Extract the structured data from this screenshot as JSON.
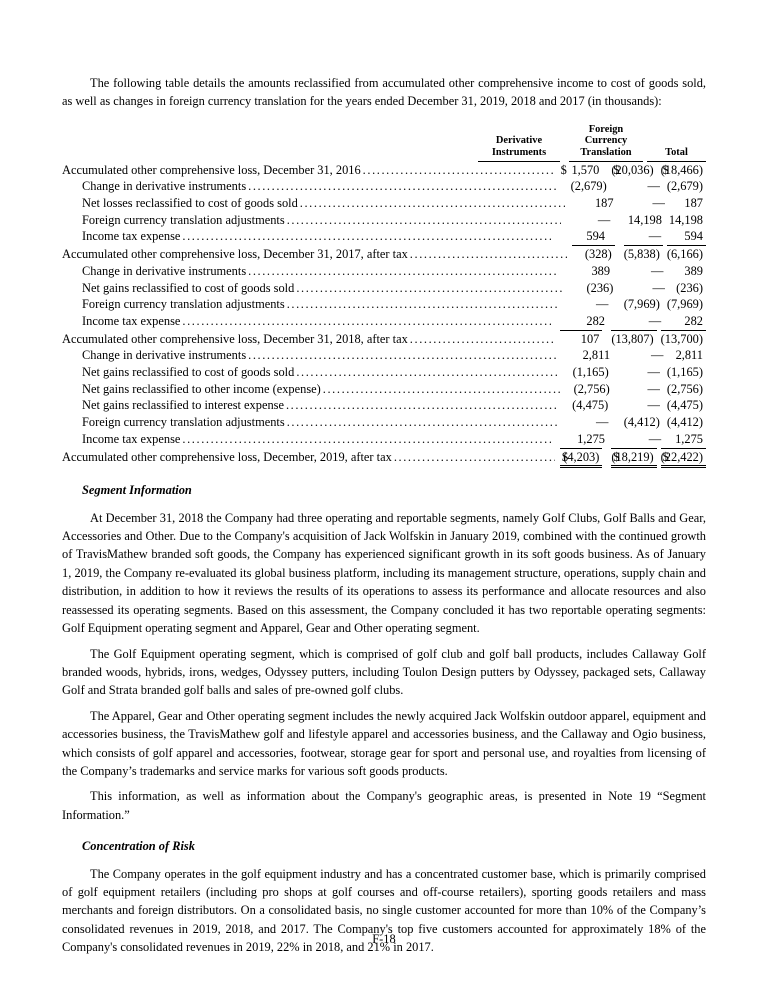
{
  "intro": "The following table details the amounts reclassified from accumulated other comprehensive income to cost of goods sold, as well as changes in foreign currency translation for the years ended December 31, 2019, 2018 and 2017 (in thousands):",
  "table": {
    "headers": [
      {
        "lines": [
          "Derivative",
          "Instruments"
        ]
      },
      {
        "lines": [
          "Foreign",
          "Currency",
          "Translation"
        ]
      },
      {
        "lines": [
          "Total"
        ]
      }
    ],
    "rows": [
      {
        "label": "Accumulated other comprehensive loss, December 31, 2016",
        "indent": false,
        "rule": "none",
        "cells": [
          {
            "s": "$",
            "v": "1,570"
          },
          {
            "s": "$",
            "v": "(20,036)"
          },
          {
            "s": "$",
            "v": "(18,466)"
          }
        ]
      },
      {
        "label": "Change in derivative instruments",
        "indent": true,
        "rule": "none",
        "cells": [
          {
            "v": "(2,679)"
          },
          {
            "v": "—"
          },
          {
            "v": "(2,679)"
          }
        ]
      },
      {
        "label": "Net losses reclassified to cost of goods sold",
        "indent": true,
        "rule": "none",
        "cells": [
          {
            "v": "187"
          },
          {
            "v": "—"
          },
          {
            "v": "187"
          }
        ]
      },
      {
        "label": "Foreign currency translation adjustments",
        "indent": true,
        "rule": "none",
        "cells": [
          {
            "v": "—"
          },
          {
            "v": "14,198"
          },
          {
            "v": "14,198"
          }
        ]
      },
      {
        "label": "Income tax expense",
        "indent": true,
        "rule": "none",
        "cells": [
          {
            "v": "594"
          },
          {
            "v": "—"
          },
          {
            "v": "594"
          }
        ]
      },
      {
        "label": "Accumulated other comprehensive loss, December 31, 2017, after tax",
        "indent": false,
        "rule": "subtotal",
        "cells": [
          {
            "v": "(328)"
          },
          {
            "v": "(5,838)"
          },
          {
            "v": "(6,166)"
          }
        ]
      },
      {
        "label": "Change in derivative instruments",
        "indent": true,
        "rule": "none",
        "cells": [
          {
            "v": "389"
          },
          {
            "v": "—"
          },
          {
            "v": "389"
          }
        ]
      },
      {
        "label": "Net gains reclassified to cost of goods sold",
        "indent": true,
        "rule": "none",
        "cells": [
          {
            "v": "(236)"
          },
          {
            "v": "—"
          },
          {
            "v": "(236)"
          }
        ]
      },
      {
        "label": "Foreign currency translation adjustments",
        "indent": true,
        "rule": "none",
        "cells": [
          {
            "v": "—"
          },
          {
            "v": "(7,969)"
          },
          {
            "v": "(7,969)"
          }
        ]
      },
      {
        "label": "Income tax expense",
        "indent": true,
        "rule": "none",
        "cells": [
          {
            "v": "282"
          },
          {
            "v": "—"
          },
          {
            "v": "282"
          }
        ]
      },
      {
        "label": "Accumulated other comprehensive loss, December 31, 2018, after tax",
        "indent": false,
        "rule": "subtotal",
        "cells": [
          {
            "v": "107"
          },
          {
            "v": "(13,807)"
          },
          {
            "v": "(13,700)"
          }
        ]
      },
      {
        "label": "Change in derivative instruments",
        "indent": true,
        "rule": "none",
        "cells": [
          {
            "v": "2,811"
          },
          {
            "v": "—"
          },
          {
            "v": "2,811"
          }
        ]
      },
      {
        "label": "Net gains reclassified to cost of goods sold",
        "indent": true,
        "rule": "none",
        "cells": [
          {
            "v": "(1,165)"
          },
          {
            "v": "—"
          },
          {
            "v": "(1,165)"
          }
        ]
      },
      {
        "label": "Net gains reclassified to other income (expense)",
        "indent": true,
        "rule": "none",
        "cells": [
          {
            "v": "(2,756)"
          },
          {
            "v": "—"
          },
          {
            "v": "(2,756)"
          }
        ]
      },
      {
        "label": "Net gains reclassified to interest expense",
        "indent": true,
        "rule": "none",
        "cells": [
          {
            "v": "(4,475)"
          },
          {
            "v": "—"
          },
          {
            "v": "(4,475)"
          }
        ]
      },
      {
        "label": "Foreign currency translation adjustments",
        "indent": true,
        "rule": "none",
        "cells": [
          {
            "v": "—"
          },
          {
            "v": "(4,412)"
          },
          {
            "v": "(4,412)"
          }
        ]
      },
      {
        "label": "Income tax expense",
        "indent": true,
        "rule": "none",
        "cells": [
          {
            "v": "1,275"
          },
          {
            "v": "—"
          },
          {
            "v": "1,275"
          }
        ]
      },
      {
        "label": "Accumulated other comprehensive loss, December, 2019, after tax",
        "indent": false,
        "rule": "grand",
        "cells": [
          {
            "s": "$",
            "v": "(4,203)"
          },
          {
            "s": "$",
            "v": "(18,219)"
          },
          {
            "s": "$",
            "v": "(22,422)"
          }
        ]
      }
    ]
  },
  "segment": {
    "heading": "Segment Information",
    "p1": "At December 31, 2018 the Company had three operating and reportable segments, namely Golf Clubs, Golf Balls and Gear, Accessories and Other.  Due to the Company's acquisition of Jack Wolfskin in January 2019, combined with the continued growth of TravisMathew branded soft goods, the Company has experienced significant growth in its soft goods business. As of January 1, 2019, the Company re-evaluated its global business platform, including its management structure, operations, supply chain and distribution, in addition to how it reviews the results of its operations to assess its performance and allocate resources and also reassessed its operating segments. Based on this assessment, the Company concluded it has two reportable operating segments: Golf Equipment operating segment and Apparel, Gear and Other operating segment.",
    "p2": "The Golf Equipment operating segment, which is comprised of golf club and golf ball products, includes Callaway Golf branded woods, hybrids, irons, wedges, Odyssey putters, including Toulon Design putters by Odyssey, packaged sets, Callaway Golf and Strata branded golf balls and sales of pre-owned golf clubs.",
    "p3": "The Apparel, Gear and Other operating segment includes the newly acquired Jack Wolfskin outdoor apparel, equipment and accessories business, the TravisMathew golf and lifestyle apparel and accessories business, and the Callaway and Ogio business, which consists of golf apparel and accessories, footwear, storage gear for sport and personal use, and royalties from licensing of the Company’s trademarks and service marks for various soft goods products.",
    "p4": "This information, as well as information about the Company's geographic areas, is presented in Note 19 “Segment Information.”"
  },
  "risk": {
    "heading": "Concentration of Risk",
    "p1": "The Company operates in the golf equipment industry and has a concentrated customer base, which is primarily comprised of golf equipment retailers (including pro shops at golf courses and off-course retailers), sporting goods retailers and mass merchants and foreign distributors. On a consolidated basis, no single customer accounted for more than 10% of the Company’s consolidated revenues in 2019, 2018, and 2017. The Company's top five customers accounted for approximately 18% of the Company's consolidated revenues in 2019, 22% in 2018, and 21% in 2017."
  },
  "footer": "F-18"
}
